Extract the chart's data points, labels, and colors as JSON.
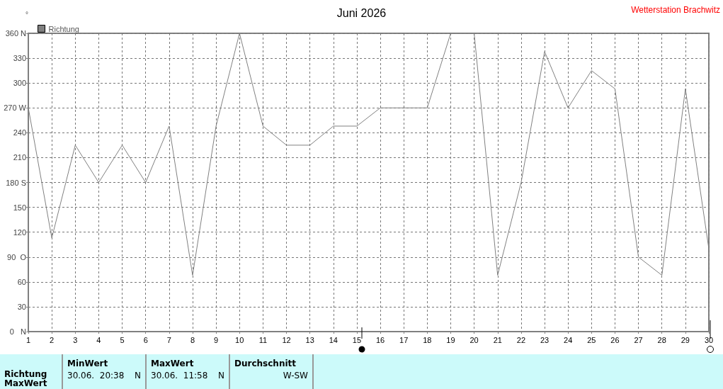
{
  "chart_data": {
    "type": "line",
    "title": "Juni 2026",
    "ylabel": "°",
    "x": [
      1,
      2,
      3,
      4,
      5,
      6,
      7,
      8,
      9,
      10,
      11,
      12,
      13,
      14,
      15,
      16,
      17,
      18,
      19,
      20,
      21,
      22,
      23,
      24,
      25,
      26,
      27,
      28,
      29,
      30
    ],
    "series": [
      {
        "name": "Richtung",
        "color": "#808080",
        "values": [
          270,
          113,
          225,
          180,
          225,
          180,
          248,
          68,
          248,
          360,
          248,
          225,
          225,
          248,
          248,
          270,
          270,
          270,
          360,
          360,
          68,
          180,
          338,
          270,
          315,
          293,
          90,
          68,
          293,
          100
        ]
      }
    ],
    "xlim": [
      1,
      30
    ],
    "xticks": [
      1,
      2,
      3,
      4,
      5,
      6,
      7,
      8,
      9,
      10,
      11,
      12,
      13,
      14,
      15,
      16,
      17,
      18,
      19,
      20,
      21,
      22,
      23,
      24,
      25,
      26,
      27,
      28,
      29,
      30
    ],
    "ylim": [
      0,
      360
    ],
    "yticks": [
      {
        "value": 0,
        "label": "0   N"
      },
      30,
      60,
      {
        "value": 90,
        "label": "90  O"
      },
      120,
      150,
      {
        "value": 180,
        "label": "180 S"
      },
      210,
      240,
      {
        "value": 270,
        "label": "270 W"
      },
      300,
      330,
      {
        "value": 360,
        "label": "360 N"
      }
    ],
    "grid": true,
    "legend": "top left",
    "marker": "none",
    "line_style": "solid",
    "annotations": [
      "Wetterstation Brachwitz",
      "Richtung",
      "MaxWert",
      "MinWert",
      "30.06.  20:38",
      "N",
      "MaxWert",
      "30.06.  11:58",
      "N",
      "Durchschnitt",
      "W-SW"
    ]
  }
}
